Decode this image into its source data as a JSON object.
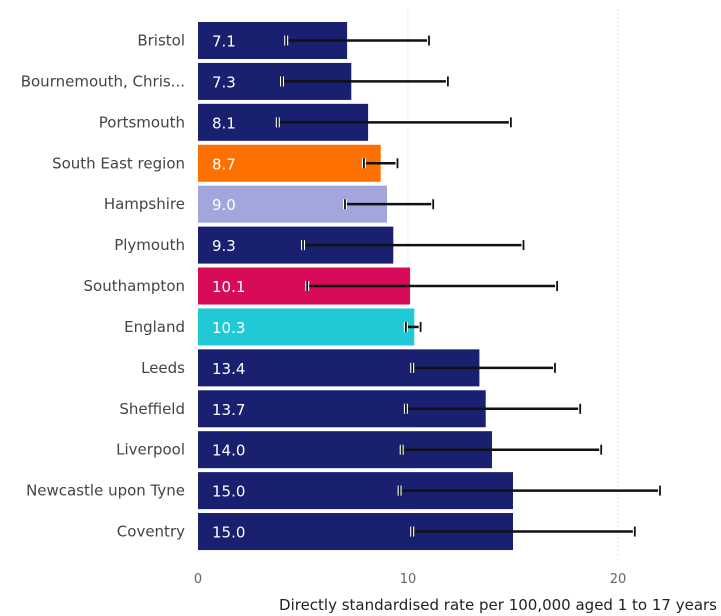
{
  "chart_data": {
    "type": "bar",
    "orientation": "horizontal",
    "categories": [
      "Bristol",
      "Bournemouth, Chris...",
      "Portsmouth",
      "South East region",
      "Hampshire",
      "Plymouth",
      "Southampton",
      "England",
      "Leeds",
      "Sheffield",
      "Liverpool",
      "Newcastle upon Tyne",
      "Coventry"
    ],
    "values": [
      7.1,
      7.3,
      8.1,
      8.7,
      9.0,
      9.3,
      10.1,
      10.3,
      13.4,
      13.7,
      14.0,
      15.0,
      15.0
    ],
    "value_labels": [
      "7.1",
      "7.3",
      "8.1",
      "8.7",
      "9.0",
      "9.3",
      "10.1",
      "10.3",
      "13.4",
      "13.7",
      "14.0",
      "15.0",
      "15.0"
    ],
    "error_low": [
      4.2,
      4.0,
      3.8,
      7.9,
      7.0,
      5.0,
      5.2,
      9.9,
      10.2,
      9.9,
      9.7,
      9.6,
      10.2
    ],
    "error_high": [
      11.0,
      11.9,
      14.9,
      9.5,
      11.2,
      15.5,
      17.1,
      10.6,
      17.0,
      18.2,
      19.2,
      22.0,
      20.8
    ],
    "bar_colors": [
      "#18206f",
      "#18206f",
      "#18206f",
      "#fe7100",
      "#a2a6dd",
      "#18206f",
      "#d70b59",
      "#21c9d6",
      "#18206f",
      "#18206f",
      "#18206f",
      "#18206f",
      "#18206f"
    ],
    "xlabel": "Directly standardised rate per 100,000 aged 1 to 17 years",
    "xlim": [
      0,
      23
    ],
    "x_ticks": [
      0,
      10,
      20
    ],
    "tick_labels": [
      "0",
      "10",
      "20"
    ],
    "grid": "vertical dotted"
  }
}
